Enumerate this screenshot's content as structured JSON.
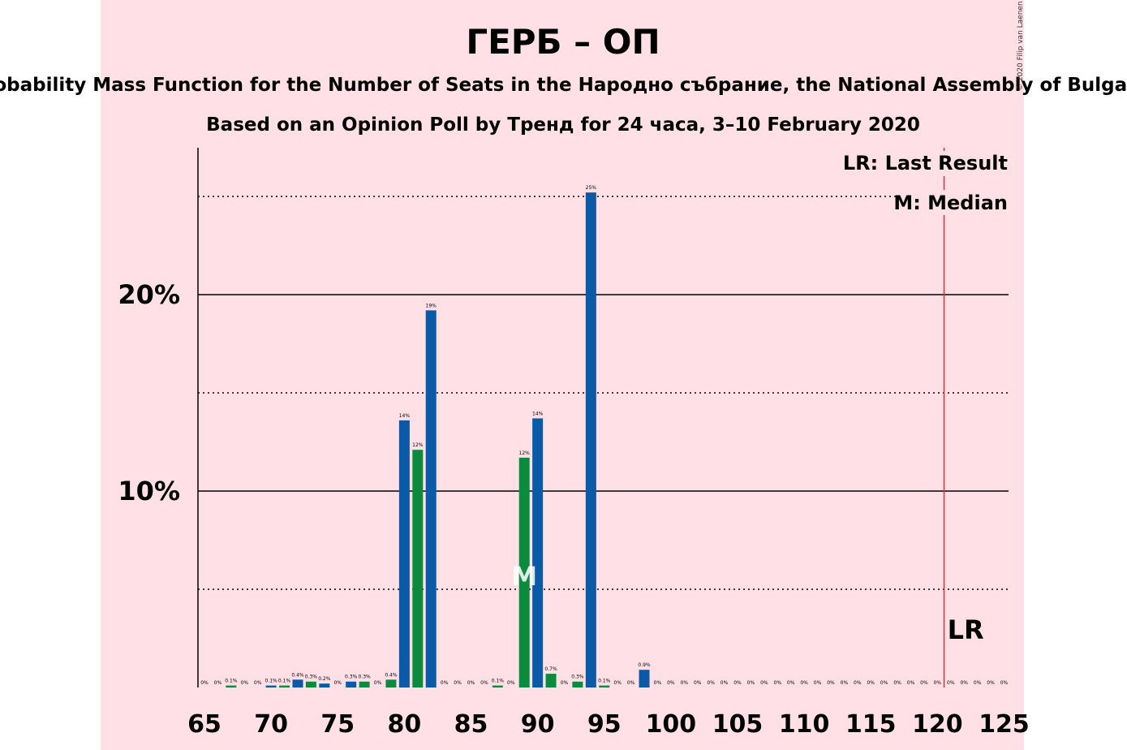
{
  "chart_data": {
    "type": "bar",
    "title": "ГЕРБ – ОП",
    "subtitle": "Probability Mass Function for the Number of Seats in the Народно събрание, the National Assembly of Bulgaria",
    "subtitle2": "Based on an Opinion Poll by Тренд for 24 часа, 3–10 February 2020",
    "copyright": "© 2020 Filip van Laenen",
    "legend": {
      "last_result": "LR: Last Result",
      "median": "M: Median",
      "placement": "top-right"
    },
    "median_marker": "M",
    "last_result_marker": "LR",
    "median_seat": 89,
    "last_result_seat": 120.5,
    "xlim": [
      65,
      125
    ],
    "ylim": [
      0,
      27.5
    ],
    "x_ticks": [
      65,
      70,
      75,
      80,
      85,
      90,
      95,
      100,
      105,
      110,
      115,
      120,
      125
    ],
    "y_ticks": [
      {
        "value": 10,
        "label": "10%"
      },
      {
        "value": 20,
        "label": "20%"
      }
    ],
    "dotted_gridlines": [
      5,
      15,
      25
    ],
    "colors": {
      "background": "#ffe0e6",
      "blue": "#0a5aa8",
      "green": "#0c8a3e",
      "last_result_line": "#e0303c"
    },
    "points": [
      {
        "x": 65,
        "y": 0,
        "label": "0%"
      },
      {
        "x": 66,
        "y": 0,
        "label": "0%"
      },
      {
        "x": 67,
        "y": 0.1,
        "label": "0.1%"
      },
      {
        "x": 68,
        "y": 0,
        "label": "0%"
      },
      {
        "x": 69,
        "y": 0,
        "label": "0%"
      },
      {
        "x": 70,
        "y": 0.1,
        "label": "0.1%"
      },
      {
        "x": 71,
        "y": 0.1,
        "label": "0.1%"
      },
      {
        "x": 72,
        "y": 0.4,
        "label": "0.4%"
      },
      {
        "x": 73,
        "y": 0.3,
        "label": "0.3%"
      },
      {
        "x": 74,
        "y": 0.2,
        "label": "0.2%"
      },
      {
        "x": 75,
        "y": 0,
        "label": "0%"
      },
      {
        "x": 76,
        "y": 0.3,
        "label": "0.3%"
      },
      {
        "x": 77,
        "y": 0.3,
        "label": "0.3%"
      },
      {
        "x": 78,
        "y": 0,
        "label": "0%"
      },
      {
        "x": 79,
        "y": 0.4,
        "label": "0.4%"
      },
      {
        "x": 80,
        "y": 13.6,
        "label": "14%"
      },
      {
        "x": 81,
        "y": 12.1,
        "label": "12%"
      },
      {
        "x": 82,
        "y": 19.2,
        "label": "19%"
      },
      {
        "x": 83,
        "y": 0,
        "label": "0%"
      },
      {
        "x": 84,
        "y": 0,
        "label": "0%"
      },
      {
        "x": 85,
        "y": 0,
        "label": "0%"
      },
      {
        "x": 86,
        "y": 0,
        "label": "0%"
      },
      {
        "x": 87,
        "y": 0.1,
        "label": "0.1%"
      },
      {
        "x": 88,
        "y": 0,
        "label": "0%"
      },
      {
        "x": 89,
        "y": 11.7,
        "label": "12%"
      },
      {
        "x": 90,
        "y": 13.7,
        "label": "14%"
      },
      {
        "x": 91,
        "y": 0.7,
        "label": "0.7%"
      },
      {
        "x": 92,
        "y": 0,
        "label": "0%"
      },
      {
        "x": 93,
        "y": 0.3,
        "label": "0.3%"
      },
      {
        "x": 94,
        "y": 25.2,
        "label": "25%"
      },
      {
        "x": 95,
        "y": 0.1,
        "label": "0.1%"
      },
      {
        "x": 96,
        "y": 0,
        "label": "0%"
      },
      {
        "x": 97,
        "y": 0,
        "label": "0%"
      },
      {
        "x": 98,
        "y": 0.9,
        "label": "0.9%"
      },
      {
        "x": 99,
        "y": 0,
        "label": "0%"
      },
      {
        "x": 100,
        "y": 0,
        "label": "0%"
      },
      {
        "x": 101,
        "y": 0,
        "label": "0%"
      },
      {
        "x": 102,
        "y": 0,
        "label": "0%"
      },
      {
        "x": 103,
        "y": 0,
        "label": "0%"
      },
      {
        "x": 104,
        "y": 0,
        "label": "0%"
      },
      {
        "x": 105,
        "y": 0,
        "label": "0%"
      },
      {
        "x": 106,
        "y": 0,
        "label": "0%"
      },
      {
        "x": 107,
        "y": 0,
        "label": "0%"
      },
      {
        "x": 108,
        "y": 0,
        "label": "0%"
      },
      {
        "x": 109,
        "y": 0,
        "label": "0%"
      },
      {
        "x": 110,
        "y": 0,
        "label": "0%"
      },
      {
        "x": 111,
        "y": 0,
        "label": "0%"
      },
      {
        "x": 112,
        "y": 0,
        "label": "0%"
      },
      {
        "x": 113,
        "y": 0,
        "label": "0%"
      },
      {
        "x": 114,
        "y": 0,
        "label": "0%"
      },
      {
        "x": 115,
        "y": 0,
        "label": "0%"
      },
      {
        "x": 116,
        "y": 0,
        "label": "0%"
      },
      {
        "x": 117,
        "y": 0,
        "label": "0%"
      },
      {
        "x": 118,
        "y": 0,
        "label": "0%"
      },
      {
        "x": 119,
        "y": 0,
        "label": "0%"
      },
      {
        "x": 120,
        "y": 0,
        "label": "0%"
      },
      {
        "x": 121,
        "y": 0,
        "label": "0%"
      },
      {
        "x": 122,
        "y": 0,
        "label": "0%"
      },
      {
        "x": 123,
        "y": 0,
        "label": "0%"
      },
      {
        "x": 124,
        "y": 0,
        "label": "0%"
      },
      {
        "x": 125,
        "y": 0,
        "label": "0%"
      }
    ]
  }
}
